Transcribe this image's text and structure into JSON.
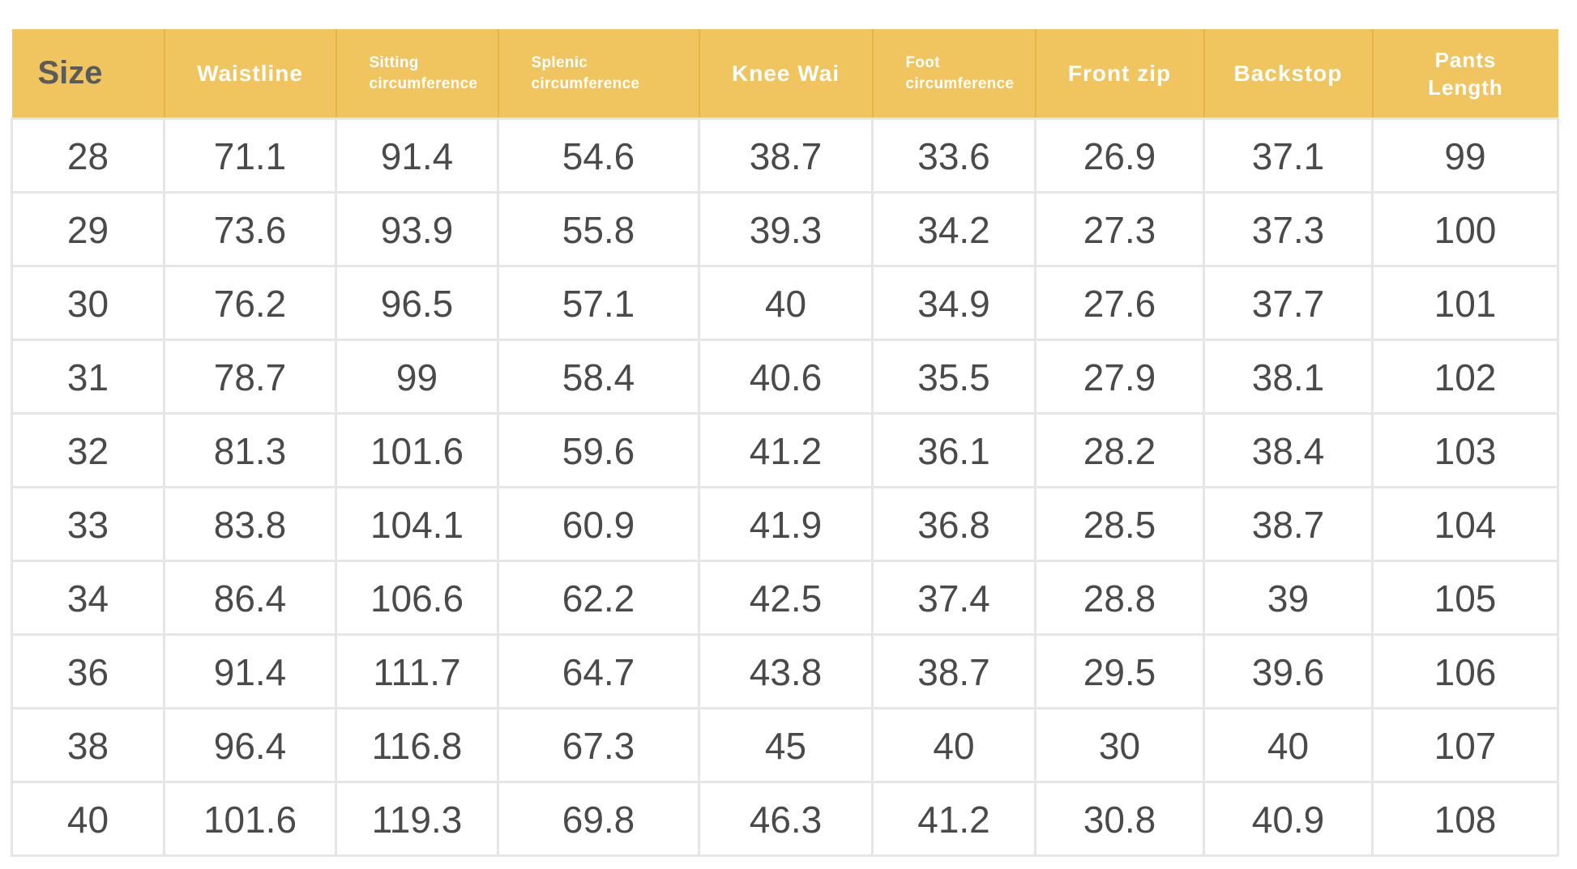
{
  "table": {
    "headers": [
      "Size",
      "Waistline",
      "Sitting circumference",
      "Splenic circumference",
      "Knee Wai",
      "Foot circumference",
      "Front zip",
      "Backstop",
      "Pants Length"
    ],
    "header_lines": [
      [
        "Size"
      ],
      [
        "Waistline"
      ],
      [
        "Sitting",
        "circumference"
      ],
      [
        "Splenic",
        "circumference"
      ],
      [
        "Knee Wai"
      ],
      [
        "Foot",
        "circumference"
      ],
      [
        "Front zip"
      ],
      [
        "Backstop"
      ],
      [
        "Pants",
        "Length"
      ]
    ],
    "rows": [
      [
        "28",
        "71.1",
        "91.4",
        "54.6",
        "38.7",
        "33.6",
        "26.9",
        "37.1",
        "99"
      ],
      [
        "29",
        "73.6",
        "93.9",
        "55.8",
        "39.3",
        "34.2",
        "27.3",
        "37.3",
        "100"
      ],
      [
        "30",
        "76.2",
        "96.5",
        "57.1",
        "40",
        "34.9",
        "27.6",
        "37.7",
        "101"
      ],
      [
        "31",
        "78.7",
        "99",
        "58.4",
        "40.6",
        "35.5",
        "27.9",
        "38.1",
        "102"
      ],
      [
        "32",
        "81.3",
        "101.6",
        "59.6",
        "41.2",
        "36.1",
        "28.2",
        "38.4",
        "103"
      ],
      [
        "33",
        "83.8",
        "104.1",
        "60.9",
        "41.9",
        "36.8",
        "28.5",
        "38.7",
        "104"
      ],
      [
        "34",
        "86.4",
        "106.6",
        "62.2",
        "42.5",
        "37.4",
        "28.8",
        "39",
        "105"
      ],
      [
        "36",
        "91.4",
        "111.7",
        "64.7",
        "43.8",
        "38.7",
        "29.5",
        "39.6",
        "106"
      ],
      [
        "38",
        "96.4",
        "116.8",
        "67.3",
        "45",
        "40",
        "30",
        "40",
        "107"
      ],
      [
        "40",
        "101.6",
        "119.3",
        "69.8",
        "46.3",
        "41.2",
        "30.8",
        "40.9",
        "108"
      ]
    ]
  },
  "colors": {
    "header_background": "#f0c45f",
    "header_text": "#ffffff",
    "size_header_text": "#5b5b5b",
    "cell_text": "#4a4a4a",
    "grid_lines": "#e6e6e6"
  }
}
